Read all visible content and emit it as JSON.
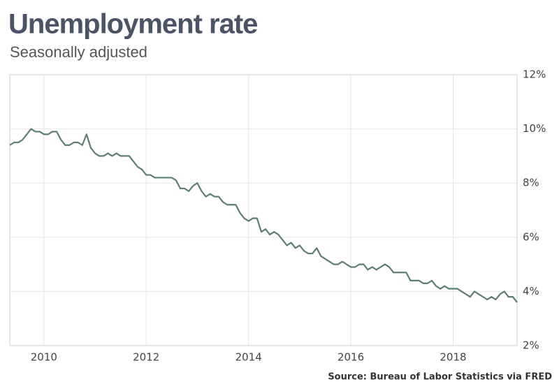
{
  "chart_data": {
    "type": "line",
    "title": "Unemployment rate",
    "subtitle": "Seasonally adjusted",
    "source": "Source: Bureau of Labor Statistics via FRED",
    "x": [
      2009.333,
      2009.417,
      2009.5,
      2009.583,
      2009.667,
      2009.75,
      2009.833,
      2009.917,
      2010,
      2010.083,
      2010.167,
      2010.25,
      2010.333,
      2010.417,
      2010.5,
      2010.583,
      2010.667,
      2010.75,
      2010.833,
      2010.917,
      2011,
      2011.083,
      2011.167,
      2011.25,
      2011.333,
      2011.417,
      2011.5,
      2011.583,
      2011.667,
      2011.75,
      2011.833,
      2011.917,
      2012,
      2012.083,
      2012.167,
      2012.25,
      2012.333,
      2012.417,
      2012.5,
      2012.583,
      2012.667,
      2012.75,
      2012.833,
      2012.917,
      2013,
      2013.083,
      2013.167,
      2013.25,
      2013.333,
      2013.417,
      2013.5,
      2013.583,
      2013.667,
      2013.75,
      2013.833,
      2013.917,
      2014,
      2014.083,
      2014.167,
      2014.25,
      2014.333,
      2014.417,
      2014.5,
      2014.583,
      2014.667,
      2014.75,
      2014.833,
      2014.917,
      2015,
      2015.083,
      2015.167,
      2015.25,
      2015.333,
      2015.417,
      2015.5,
      2015.583,
      2015.667,
      2015.75,
      2015.833,
      2015.917,
      2016,
      2016.083,
      2016.167,
      2016.25,
      2016.333,
      2016.417,
      2016.5,
      2016.583,
      2016.667,
      2016.75,
      2016.833,
      2016.917,
      2017,
      2017.083,
      2017.167,
      2017.25,
      2017.333,
      2017.417,
      2017.5,
      2017.583,
      2017.667,
      2017.75,
      2017.833,
      2017.917,
      2018,
      2018.083,
      2018.167,
      2018.25,
      2018.333,
      2018.417,
      2018.5,
      2018.583,
      2018.667,
      2018.75,
      2018.833,
      2018.917,
      2019,
      2019.083,
      2019.167,
      2019.25
    ],
    "series": [
      {
        "name": "Unemployment rate",
        "color": "#5e7d78",
        "values": [
          9.4,
          9.5,
          9.5,
          9.6,
          9.8,
          10.0,
          9.9,
          9.9,
          9.8,
          9.8,
          9.9,
          9.9,
          9.6,
          9.4,
          9.4,
          9.5,
          9.5,
          9.4,
          9.8,
          9.3,
          9.1,
          9.0,
          9.0,
          9.1,
          9.0,
          9.1,
          9.0,
          9.0,
          9.0,
          8.8,
          8.6,
          8.5,
          8.3,
          8.3,
          8.2,
          8.2,
          8.2,
          8.2,
          8.2,
          8.1,
          7.8,
          7.8,
          7.7,
          7.9,
          8.0,
          7.7,
          7.5,
          7.6,
          7.5,
          7.5,
          7.3,
          7.2,
          7.2,
          7.2,
          6.9,
          6.7,
          6.6,
          6.7,
          6.7,
          6.2,
          6.3,
          6.1,
          6.2,
          6.1,
          5.9,
          5.7,
          5.8,
          5.6,
          5.7,
          5.5,
          5.4,
          5.4,
          5.6,
          5.3,
          5.2,
          5.1,
          5.0,
          5.0,
          5.1,
          5.0,
          4.9,
          4.9,
          5.0,
          5.0,
          4.8,
          4.9,
          4.8,
          4.9,
          5.0,
          4.9,
          4.7,
          4.7,
          4.7,
          4.7,
          4.4,
          4.4,
          4.4,
          4.3,
          4.3,
          4.4,
          4.2,
          4.1,
          4.2,
          4.1,
          4.1,
          4.1,
          4.0,
          3.9,
          3.8,
          4.0,
          3.9,
          3.8,
          3.7,
          3.8,
          3.7,
          3.9,
          4.0,
          3.8,
          3.8,
          3.6
        ]
      }
    ],
    "xlim": [
      2009.333,
      2019.25
    ],
    "xticks": [
      2010,
      2012,
      2014,
      2016,
      2018
    ],
    "ylim": [
      2,
      12
    ],
    "yticks": [
      {
        "value": 2,
        "label": "2%"
      },
      {
        "value": 4,
        "label": "4%"
      },
      {
        "value": 6,
        "label": "6%"
      },
      {
        "value": 8,
        "label": "8%"
      },
      {
        "value": 10,
        "label": "10%"
      },
      {
        "value": 12,
        "label": "12%"
      }
    ],
    "grid": true
  }
}
